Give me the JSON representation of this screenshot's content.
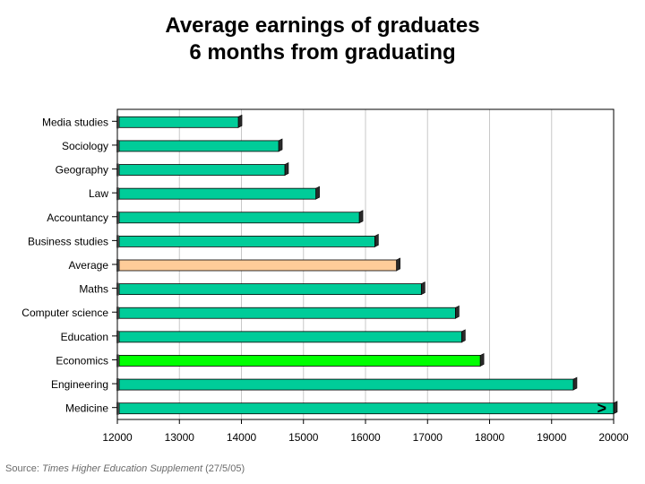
{
  "chart_data": {
    "type": "bar",
    "orientation": "horizontal",
    "title": [
      "Average earnings of graduates",
      "6 months from graduating"
    ],
    "categories": [
      "Media studies",
      "Sociology",
      "Geography",
      "Law",
      "Accountancy",
      "Business studies",
      "Average",
      "Maths",
      "Computer science",
      "Education",
      "Economics",
      "Engineering",
      "Medicine"
    ],
    "values": [
      13950,
      14600,
      14700,
      15200,
      15900,
      16150,
      16500,
      16900,
      17450,
      17550,
      17850,
      19350,
      20000
    ],
    "xlim": [
      12000,
      20000
    ],
    "xticks": [
      12000,
      13000,
      14000,
      15000,
      16000,
      17000,
      18000,
      19000,
      20000
    ],
    "grid": "vertical",
    "bar_colors": [
      "#00cc99",
      "#00cc99",
      "#00cc99",
      "#00cc99",
      "#00cc99",
      "#00cc99",
      "#ffcc99",
      "#00cc99",
      "#00cc99",
      "#00cc99",
      "#00ff00",
      "#00cc99",
      "#00cc99"
    ],
    "annotation": {
      "category": "Medicine",
      "text": ">"
    }
  },
  "source": {
    "prefix": "Source: ",
    "publication": "Times Higher Education Supplement",
    "suffix": " (27/5/05)"
  }
}
